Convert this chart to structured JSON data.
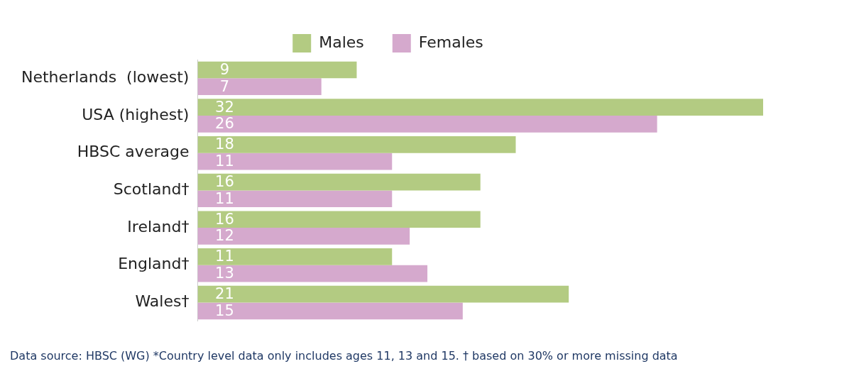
{
  "chart_data": {
    "type": "bar",
    "orientation": "horizontal",
    "categories": [
      "Netherlands  (lowest)",
      "USA (highest)",
      "HBSC average",
      "Scotland†",
      "Ireland†",
      "England†",
      "Wales†"
    ],
    "series": [
      {
        "name": "Males",
        "color": "#b3cb82",
        "values": [
          9,
          32,
          18,
          16,
          16,
          11,
          21
        ]
      },
      {
        "name": "Females",
        "color": "#d5a9cd",
        "values": [
          7,
          26,
          11,
          11,
          12,
          13,
          15
        ]
      }
    ],
    "data_labels": true,
    "legend": "top",
    "annotations": [
      "Data source: HBSC (WG)  *Country level data only includes ages 11, 13 and 15.  † based on 30% or more missing data"
    ]
  }
}
